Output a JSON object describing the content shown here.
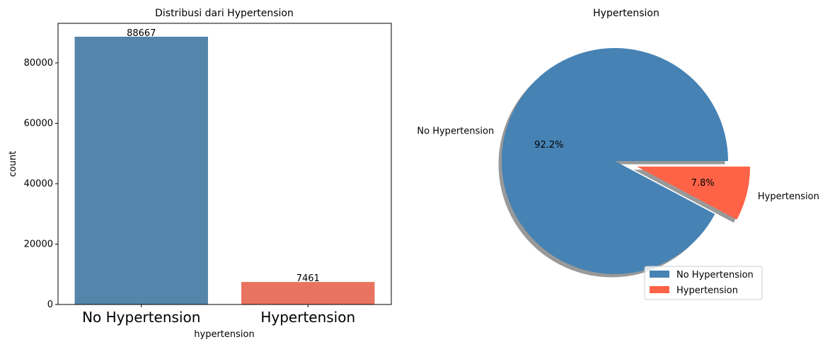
{
  "chart_data": [
    {
      "type": "bar",
      "title": "Distribusi dari Hypertension",
      "xlabel": "hypertension",
      "ylabel": "count",
      "categories": [
        "No Hypertension",
        "Hypertension"
      ],
      "values": [
        88667,
        7461
      ],
      "data_labels": [
        "88667",
        "7461"
      ],
      "colors": [
        "#5585aa",
        "#e8735f"
      ],
      "yticks": [
        0,
        20000,
        40000,
        60000,
        80000
      ],
      "ytick_labels": [
        "0",
        "20000",
        "40000",
        "60000",
        "80000"
      ],
      "ylim": [
        0,
        93100
      ],
      "grid": false
    },
    {
      "type": "pie",
      "title": "Hypertension",
      "labels": [
        "No Hypertension",
        "Hypertension"
      ],
      "values": [
        88667,
        7461
      ],
      "percent_labels": [
        "92.2%",
        "7.8%"
      ],
      "colors": [
        "#4682b4",
        "#ff6347"
      ],
      "explode": [
        0,
        0.2
      ],
      "shadow": true,
      "legend": {
        "placement": "lower-right",
        "entries": [
          "No Hypertension",
          "Hypertension"
        ]
      }
    }
  ]
}
